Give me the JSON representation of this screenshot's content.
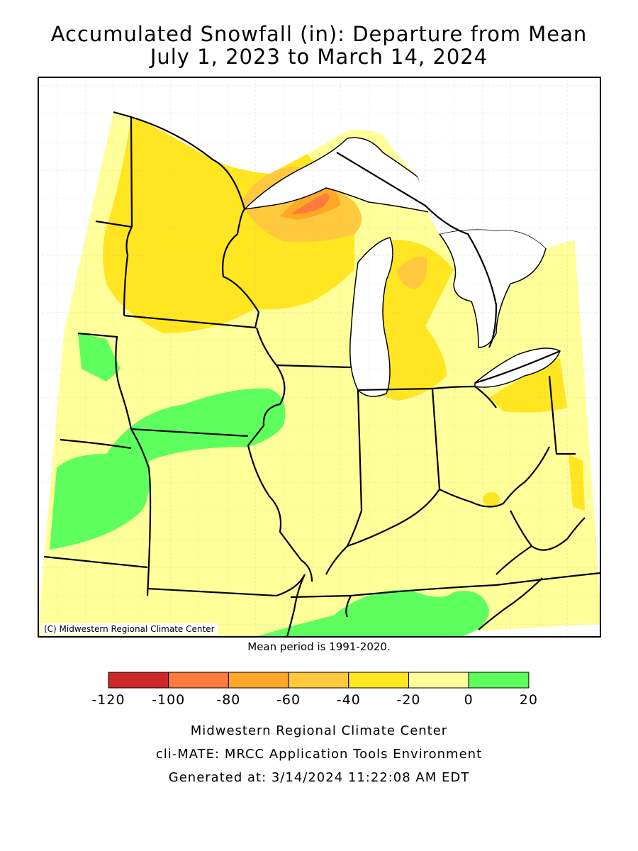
{
  "title": {
    "line1": "Accumulated Snowfall (in): Departure from Mean",
    "line2": "July 1, 2023 to March 14, 2024"
  },
  "map": {
    "copyright": "(C) Midwestern Regional Climate Center",
    "mean_note": "Mean period is 1991-2020."
  },
  "legend": {
    "ticks": [
      "-120",
      "-100",
      "-80",
      "-60",
      "-40",
      "-20",
      "0",
      "20"
    ],
    "colors": [
      "#cc2828",
      "#ff7a3d",
      "#ffa726",
      "#ffc83d",
      "#ffe620",
      "#ffff99",
      "#5dff5d"
    ]
  },
  "footer": {
    "line1": "Midwestern Regional Climate Center",
    "line2": "cli-MATE: MRCC Application Tools Environment",
    "line3": "Generated at: 3/14/2024 11:22:08 AM EDT"
  }
}
